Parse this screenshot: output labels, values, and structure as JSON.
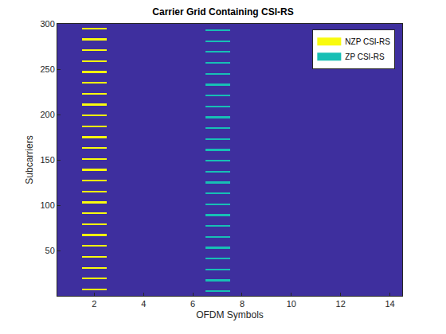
{
  "chart_data": {
    "type": "heatmap",
    "title": "Carrier Grid Containing CSI-RS",
    "x_label": "OFDM Symbols",
    "y_label": "Subcarriers",
    "xlim": [
      0.5,
      14.5
    ],
    "ylim": [
      0.5,
      300.5
    ],
    "xticks": [
      2,
      4,
      6,
      8,
      10,
      12,
      14
    ],
    "yticks": [
      50,
      100,
      150,
      200,
      250,
      300
    ],
    "color": "#3e2f9e",
    "legend": "top right",
    "grid": false,
    "series": [
      {
        "name": "NZP CSI-RS",
        "color": "#f9fb0e",
        "symbol": 2,
        "subcarriers": [
          7,
          8,
          19,
          20,
          31,
          32,
          43,
          44,
          55,
          56,
          67,
          68,
          79,
          80,
          91,
          92,
          103,
          104,
          115,
          116,
          127,
          128,
          139,
          140,
          151,
          152,
          163,
          164,
          175,
          176,
          187,
          188,
          199,
          200,
          211,
          212,
          223,
          224,
          235,
          236,
          247,
          248,
          259,
          260,
          271,
          272,
          283,
          284,
          295,
          296
        ]
      },
      {
        "name": "ZP CSI-RS",
        "color": "#17bfb5",
        "symbol": 7,
        "subcarriers": [
          5,
          6,
          17,
          18,
          29,
          30,
          41,
          42,
          53,
          54,
          65,
          66,
          77,
          78,
          89,
          90,
          101,
          102,
          113,
          114,
          125,
          126,
          137,
          138,
          149,
          150,
          161,
          162,
          173,
          174,
          185,
          186,
          197,
          198,
          209,
          210,
          221,
          222,
          233,
          234,
          245,
          246,
          257,
          258,
          269,
          270,
          281,
          282,
          293,
          294
        ]
      }
    ]
  }
}
